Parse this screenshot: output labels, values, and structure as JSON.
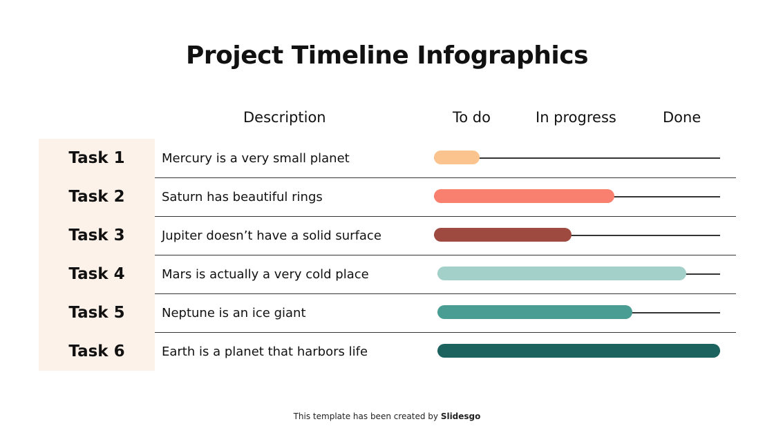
{
  "title": "Project Timeline Infographics",
  "footer": {
    "text": "This template has been created by ",
    "brand": "Slidesgo"
  },
  "chart_data": {
    "type": "bar",
    "orientation": "horizontal",
    "columns": {
      "description": "Description",
      "stages": [
        "To do",
        "In progress",
        "Done"
      ]
    },
    "xlim": [
      0,
      1
    ],
    "rows": [
      {
        "task": "Task 1",
        "description": "Mercury is a very small planet",
        "progress": 0.16,
        "color": "#fbc38d"
      },
      {
        "task": "Task 2",
        "description": "Saturn has beautiful rings",
        "progress": 0.63,
        "color": "#f97f6e"
      },
      {
        "task": "Task 3",
        "description": "Jupiter doesn’t have a solid surface",
        "progress": 0.48,
        "color": "#9e4a40"
      },
      {
        "task": "Task 4",
        "description": "Mars is actually a very cold place",
        "progress": 0.88,
        "color": "#a3d0c8"
      },
      {
        "task": "Task 5",
        "description": "Neptune is an ice giant",
        "progress": 0.69,
        "color": "#4a9d93"
      },
      {
        "task": "Task 6",
        "description": "Earth is a planet that harbors life",
        "progress": 1.0,
        "color": "#1c6360"
      }
    ]
  }
}
